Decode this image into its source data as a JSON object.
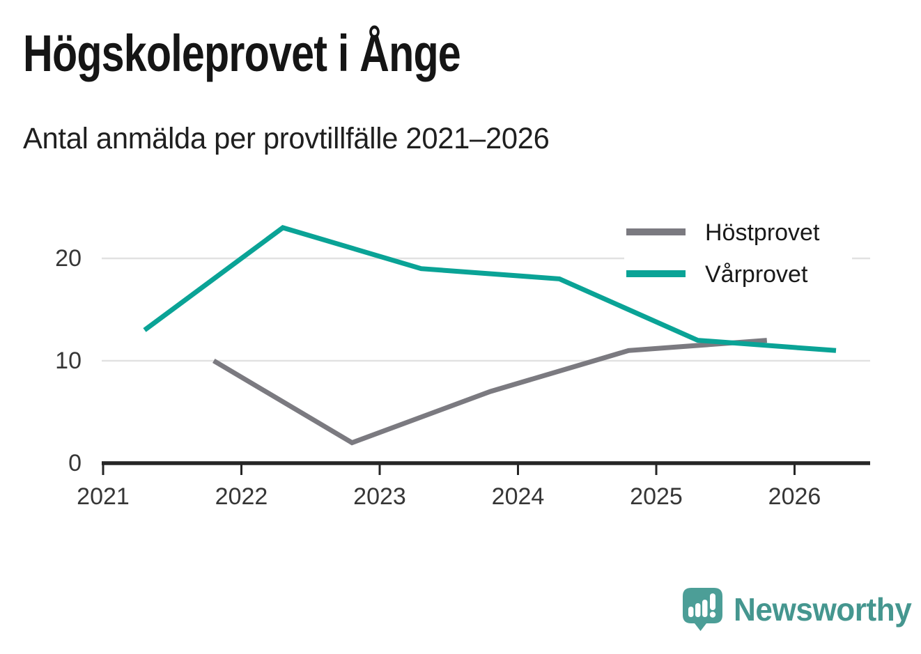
{
  "chart_data": {
    "type": "line",
    "title": "Högskoleprovet i Ånge",
    "subtitle": "Antal anmälda per provtillfälle 2021–2026",
    "x_tick_labels": [
      "2021",
      "2022",
      "2023",
      "2024",
      "2025",
      "2026"
    ],
    "x_tick_years": [
      2021,
      2022,
      2023,
      2024,
      2025,
      2026
    ],
    "y_tick_labels": [
      "0",
      "10",
      "20"
    ],
    "y_tick_values": [
      0,
      10,
      20
    ],
    "grid_values": [
      10,
      20
    ],
    "xlim": [
      2021,
      2026.55
    ],
    "ylim": [
      0,
      24.5
    ],
    "grid": true,
    "legend_position": "top-right",
    "series": [
      {
        "name": "Höstprovet",
        "color": "#7b7a80",
        "x": [
          2021.8,
          2022.8,
          2023.8,
          2024.8,
          2025.8
        ],
        "values": [
          10,
          2,
          7,
          11,
          12
        ]
      },
      {
        "name": "Vårprovet",
        "color": "#0aa396",
        "x": [
          2021.3,
          2022.3,
          2023.3,
          2024.3,
          2025.3,
          2026.3
        ],
        "values": [
          13,
          23,
          19,
          18,
          12,
          11
        ]
      }
    ]
  },
  "footer": {
    "brand": "Newsworthy"
  },
  "colors": {
    "title": "#151515",
    "subtitle": "#1f1f1f",
    "axis_line": "#262626",
    "tick_text": "#363636",
    "grid_line": "#e1e1e1",
    "legend_text": "#191919",
    "legend_bg": "#ffffff",
    "logo_bubble": "#4c9e97",
    "logo_bars": "#ffffff",
    "logo_wordmark": "#45968f",
    "background": "#ffffff"
  }
}
